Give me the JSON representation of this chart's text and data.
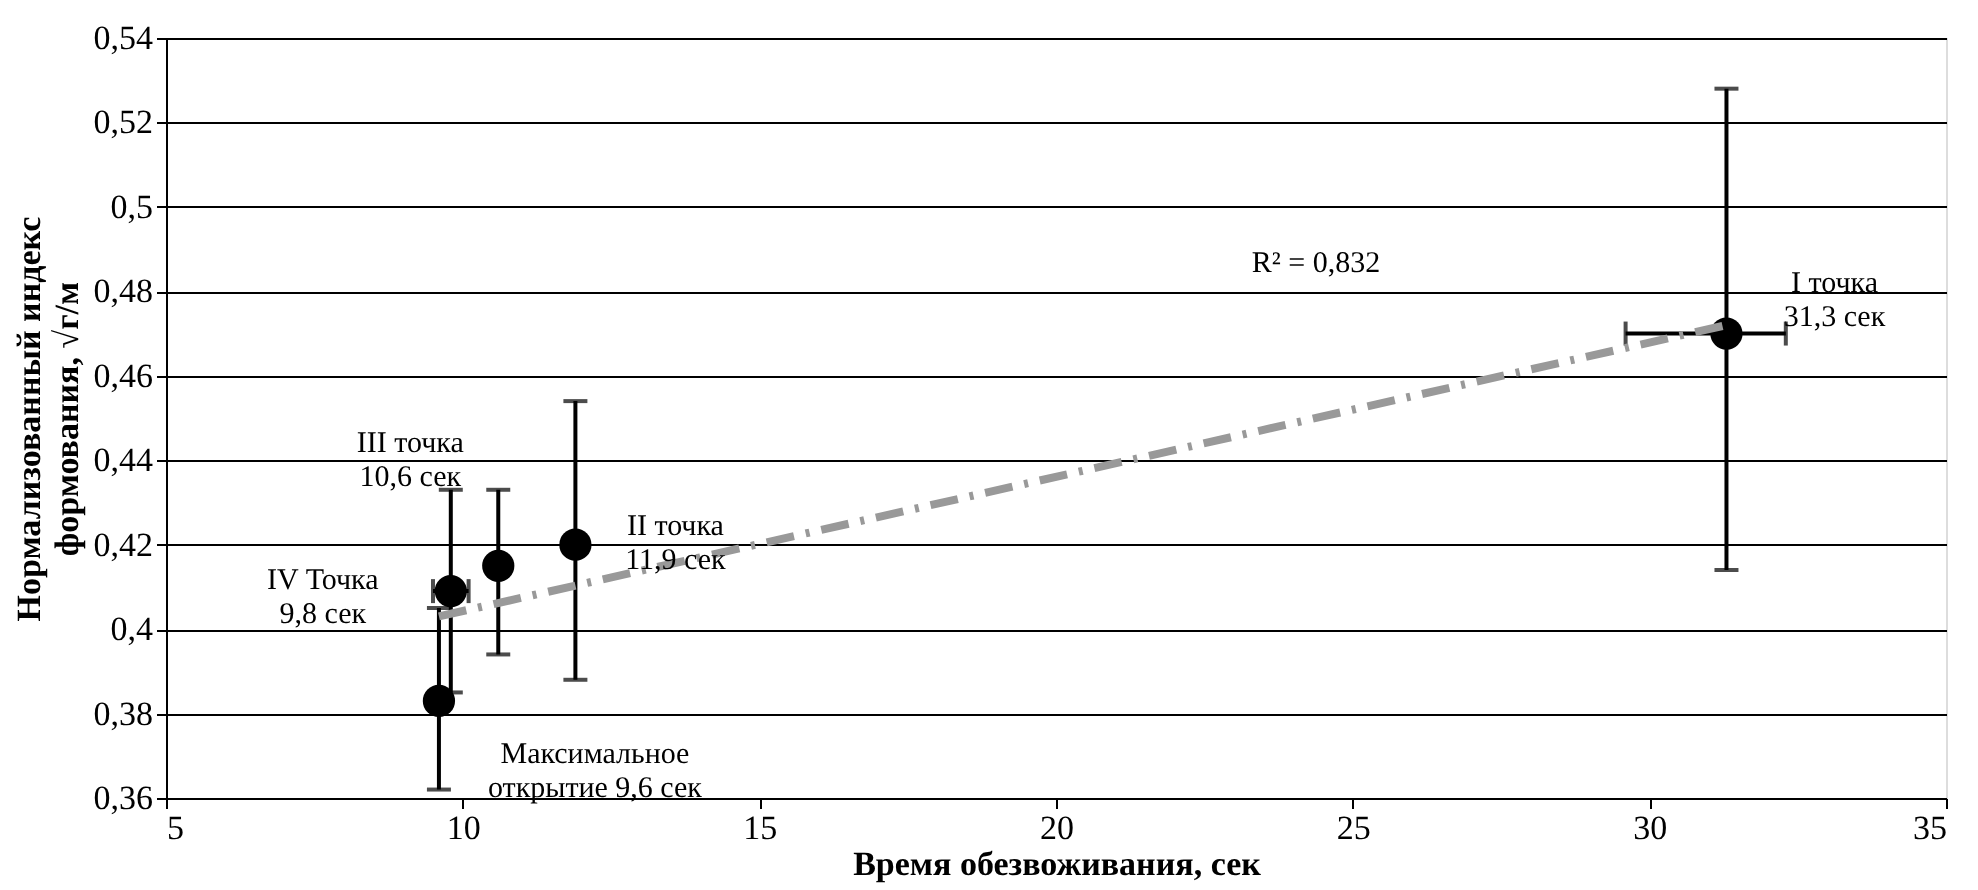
{
  "chart_data": {
    "type": "scatter",
    "xlabel": "Время обезвоживания, сек",
    "ylabel": "Нормализованный индекс формования, √г/м",
    "xlim": [
      5,
      35
    ],
    "xticks": [
      5,
      10,
      15,
      20,
      25,
      30,
      35
    ],
    "ylim": [
      0.36,
      0.54
    ],
    "yticks": [
      {
        "value": 0.36,
        "label": "0,36"
      },
      {
        "value": 0.38,
        "label": "0,38"
      },
      {
        "value": 0.4,
        "label": "0,4"
      },
      {
        "value": 0.42,
        "label": "0,42"
      },
      {
        "value": 0.44,
        "label": "0,44"
      },
      {
        "value": 0.46,
        "label": "0,46"
      },
      {
        "value": 0.48,
        "label": "0,48"
      },
      {
        "value": 0.5,
        "label": "0,5"
      },
      {
        "value": 0.52,
        "label": "0,52"
      },
      {
        "value": 0.54,
        "label": "0,54"
      }
    ],
    "grid": "y",
    "series": [
      {
        "marker": "circle",
        "color": "#000000",
        "x": [
          9.6,
          9.8,
          10.6,
          11.9,
          31.3
        ],
        "values": [
          0.383,
          0.409,
          0.415,
          0.42,
          0.47
        ],
        "errors": [
          [
            0.362,
            0.405
          ],
          [
            0.385,
            0.433
          ],
          [
            0.394,
            0.433
          ],
          [
            0.388,
            0.454
          ],
          [
            0.414,
            0.528
          ]
        ],
        "xerrors": [
          null,
          [
            9.5,
            10.1
          ],
          null,
          null,
          [
            29.6,
            32.3
          ]
        ]
      },
      {
        "type": "line",
        "color": "#999999",
        "line_style": "dashdot",
        "x": [
          9.6,
          31.3
        ],
        "values": [
          0.403,
          0.472
        ]
      }
    ],
    "annotations": [
      {
        "text": "I точка\n31,3 сек",
        "x": 31.3,
        "y": 0.47
      },
      {
        "text": "II точка\n11,9 сек",
        "x": 11.9,
        "y": 0.42
      },
      {
        "text": "III точка\n10,6 сек",
        "x": 10.6,
        "y": 0.415
      },
      {
        "text": "IV Точка\n9,8 сек",
        "x": 9.8,
        "y": 0.409
      },
      {
        "text": "Максимальное\nоткрытие 9,6 сек",
        "x": 9.6,
        "y": 0.383
      },
      "R² = 0,832"
    ]
  }
}
